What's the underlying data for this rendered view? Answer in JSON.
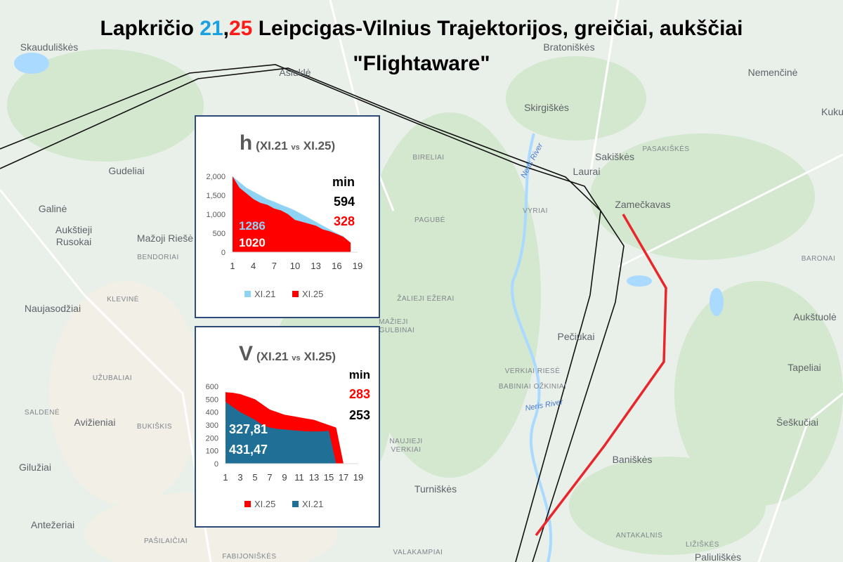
{
  "title": {
    "prefix": "Lapkričio",
    "date1": "21",
    "sep": ",",
    "date2": "25",
    "rest": "Leipcigas-Vilnius Trajektorijos, greičiai, aukščiai",
    "line2": "\"Flightaware\""
  },
  "map_labels": [
    "Skauduliškės",
    "Asiuklė",
    "Bratoniškės",
    "Nemenčinė",
    "Kuku",
    "Skirgiškės",
    "Sakiškės",
    "PASAKIŠKĖS",
    "Laurai",
    "Gudeliai",
    "BIRELIAI",
    "Neris River",
    "Zamečkavas",
    "Galinė",
    "Aukštieji",
    "Rusokai",
    "Mažoji Riešė",
    "PAGUBĖ",
    "VYRIAI",
    "BARONAI",
    "BENDORIAI",
    "KLEVINĖ",
    "Naujasodžiai",
    "ŽALIEJI EŽERAI",
    "MAŽIEJI",
    "GULBINAI",
    "Pečiukai",
    "Aukštuolė",
    "Tapeliai",
    "UŽUBALIAI",
    "SALDENĖ",
    "Avižieniai",
    "BUKIŠKIS",
    "VERKIAI RIESĖ",
    "BABINIAI",
    "OŽKINIAI",
    "Neris River",
    "Šeškučiai",
    "NAUJIEJI",
    "VERKIAI",
    "Gilužiai",
    "Baniškės",
    "Turniškės",
    "Antežeriai",
    "PAŠILAIČIAI",
    "FABIJONIŠKĖS",
    "VALAKAMPIAI",
    "ANTAKALNIS",
    "LIŽIŠKĖS",
    "Paliuliškės"
  ],
  "chart_data": [
    {
      "type": "area",
      "title": "h",
      "note": [
        "(XI.21",
        "vs",
        "XI.25)"
      ],
      "categories": [
        1,
        null,
        null,
        4,
        null,
        null,
        7,
        null,
        null,
        10,
        null,
        null,
        13,
        null,
        null,
        16,
        null,
        null,
        19
      ],
      "series": [
        {
          "name": "XI.21",
          "color": "#8fd3f4",
          "values": [
            2000,
            1850,
            1700,
            1600,
            1500,
            1400,
            1330,
            1250,
            1180,
            1100,
            1000,
            900,
            800,
            700,
            600,
            500,
            420,
            null,
            null
          ]
        },
        {
          "name": "XI.25",
          "color": "#ff0000",
          "values": [
            2000,
            1700,
            1550,
            1400,
            1300,
            1250,
            1150,
            1100,
            1000,
            850,
            800,
            750,
            700,
            600,
            550,
            480,
            400,
            250,
            null
          ]
        }
      ],
      "ylim": [
        0,
        2000
      ],
      "yticks": [
        0,
        500,
        {
          "value": 1000,
          "label": "1,000"
        },
        {
          "value": 1500,
          "label": "1,500"
        },
        {
          "value": 2000,
          "label": "2,000"
        }
      ],
      "annotations": [
        {
          "text": "min",
          "color": "#000000"
        },
        {
          "text": "594",
          "color": "#000000"
        },
        {
          "text": "328",
          "color": "#ff0000"
        },
        {
          "text": "1286",
          "color": "#8fd3f4"
        },
        {
          "text": "1020",
          "color": "#ffffff"
        }
      ]
    },
    {
      "type": "area",
      "title": "V",
      "note": [
        "(XI.21",
        "vs",
        "XI.25)"
      ],
      "categories": [
        1,
        null,
        3,
        null,
        5,
        null,
        7,
        null,
        9,
        null,
        11,
        null,
        13,
        null,
        15,
        null,
        17,
        null,
        19
      ],
      "series": [
        {
          "name": "XI.25",
          "color": "#ff0000",
          "values": [
            555,
            550,
            540,
            520,
            500,
            460,
            420,
            400,
            380,
            370,
            360,
            350,
            340,
            320,
            300,
            280,
            0,
            null,
            null
          ]
        },
        {
          "name": "XI.21",
          "color": "#1f6f96",
          "values": [
            480,
            440,
            400,
            370,
            340,
            300,
            280,
            270,
            265,
            260,
            255,
            250,
            250,
            250,
            255,
            0,
            null,
            null,
            null
          ]
        }
      ],
      "ylim": [
        0,
        600
      ],
      "yticks": [
        0,
        100,
        200,
        300,
        400,
        500,
        600
      ],
      "annotations": [
        {
          "text": "min",
          "color": "#000000"
        },
        {
          "text": "283",
          "color": "#ff0000"
        },
        {
          "text": "253",
          "color": "#000000"
        },
        {
          "text": "327,81",
          "color": "#ffffff"
        },
        {
          "text": "431,47",
          "color": "#ffffff"
        }
      ]
    }
  ]
}
